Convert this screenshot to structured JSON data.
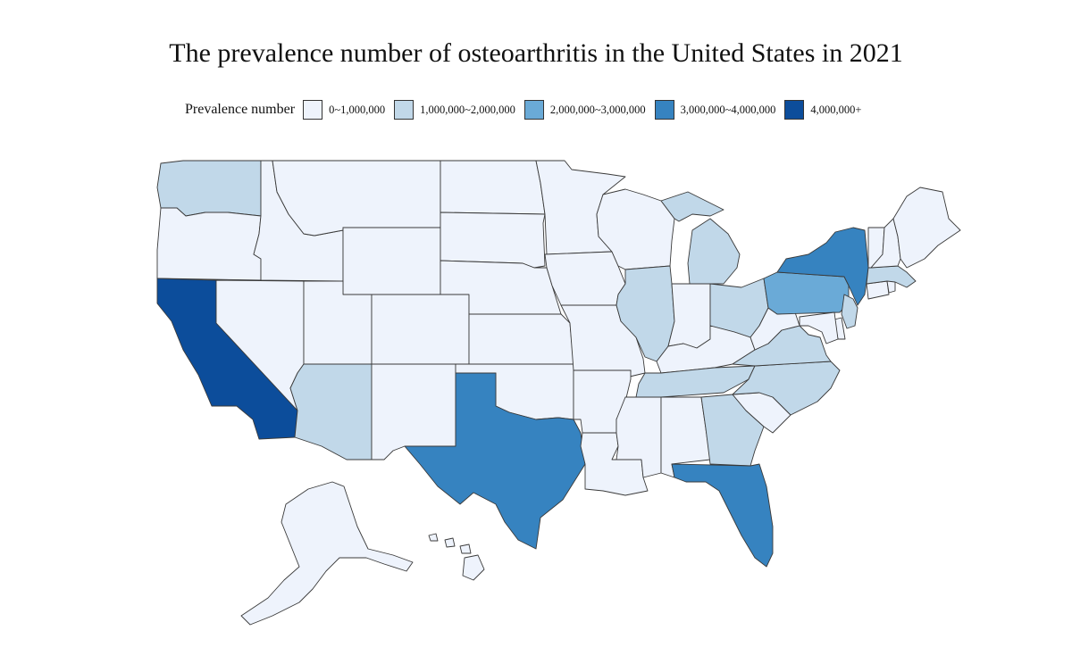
{
  "title": "The prevalence number of osteoarthritis in the United States in 2021",
  "legend": {
    "label": "Prevalence number",
    "items": [
      {
        "range": "0~1,000,000",
        "color": "#eef3fc"
      },
      {
        "range": "1,000,000~2,000,000",
        "color": "#c1d8e9"
      },
      {
        "range": "2,000,000~3,000,000",
        "color": "#6aaad7"
      },
      {
        "range": "3,000,000~4,000,000",
        "color": "#3683c0"
      },
      {
        "range": "4,000,000+",
        "color": "#0c4d9b"
      }
    ]
  },
  "states": {
    "WA": 1,
    "OR": 0,
    "CA": 4,
    "NV": 0,
    "ID": 0,
    "MT": 0,
    "WY": 0,
    "UT": 0,
    "AZ": 1,
    "CO": 0,
    "NM": 0,
    "ND": 0,
    "SD": 0,
    "NE": 0,
    "KS": 0,
    "OK": 0,
    "TX": 3,
    "MN": 0,
    "IA": 0,
    "MO": 0,
    "AR": 0,
    "LA": 0,
    "WI": 0,
    "IL": 1,
    "MI": 1,
    "IN": 0,
    "OH": 1,
    "KY": 0,
    "TN": 1,
    "MS": 0,
    "AL": 0,
    "GA": 1,
    "FL": 3,
    "SC": 0,
    "NC": 1,
    "VA": 1,
    "WV": 0,
    "PA": 2,
    "NY": 3,
    "NJ": 1,
    "DE": 0,
    "MD": 0,
    "CT": 0,
    "RI": 0,
    "MA": 1,
    "VT": 0,
    "NH": 0,
    "ME": 0,
    "AK": 0,
    "HI": 0
  }
}
